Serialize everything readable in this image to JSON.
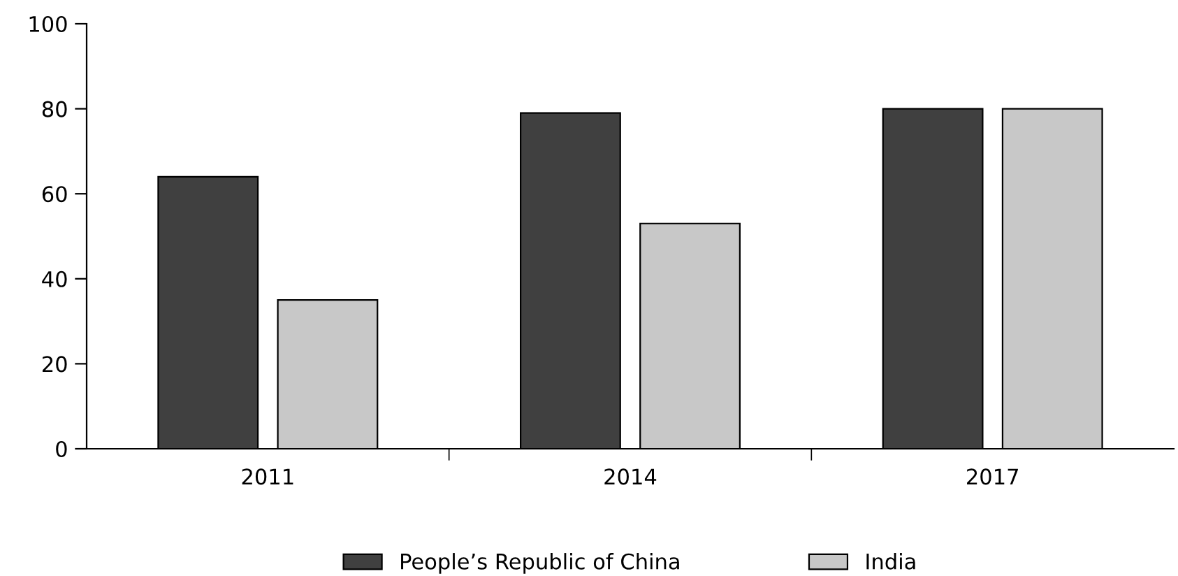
{
  "chart_data": {
    "type": "bar",
    "categories": [
      "2011",
      "2014",
      "2017"
    ],
    "series": [
      {
        "name": "People’s Republic of China",
        "color": "#404040",
        "values": [
          64,
          79,
          80
        ]
      },
      {
        "name": "India",
        "color": "#c8c8c8",
        "values": [
          35,
          53,
          80
        ]
      }
    ],
    "ylim": [
      0,
      100
    ],
    "yticks": [
      0,
      20,
      40,
      60,
      80,
      100
    ],
    "grid": false,
    "legend": "bottom"
  }
}
